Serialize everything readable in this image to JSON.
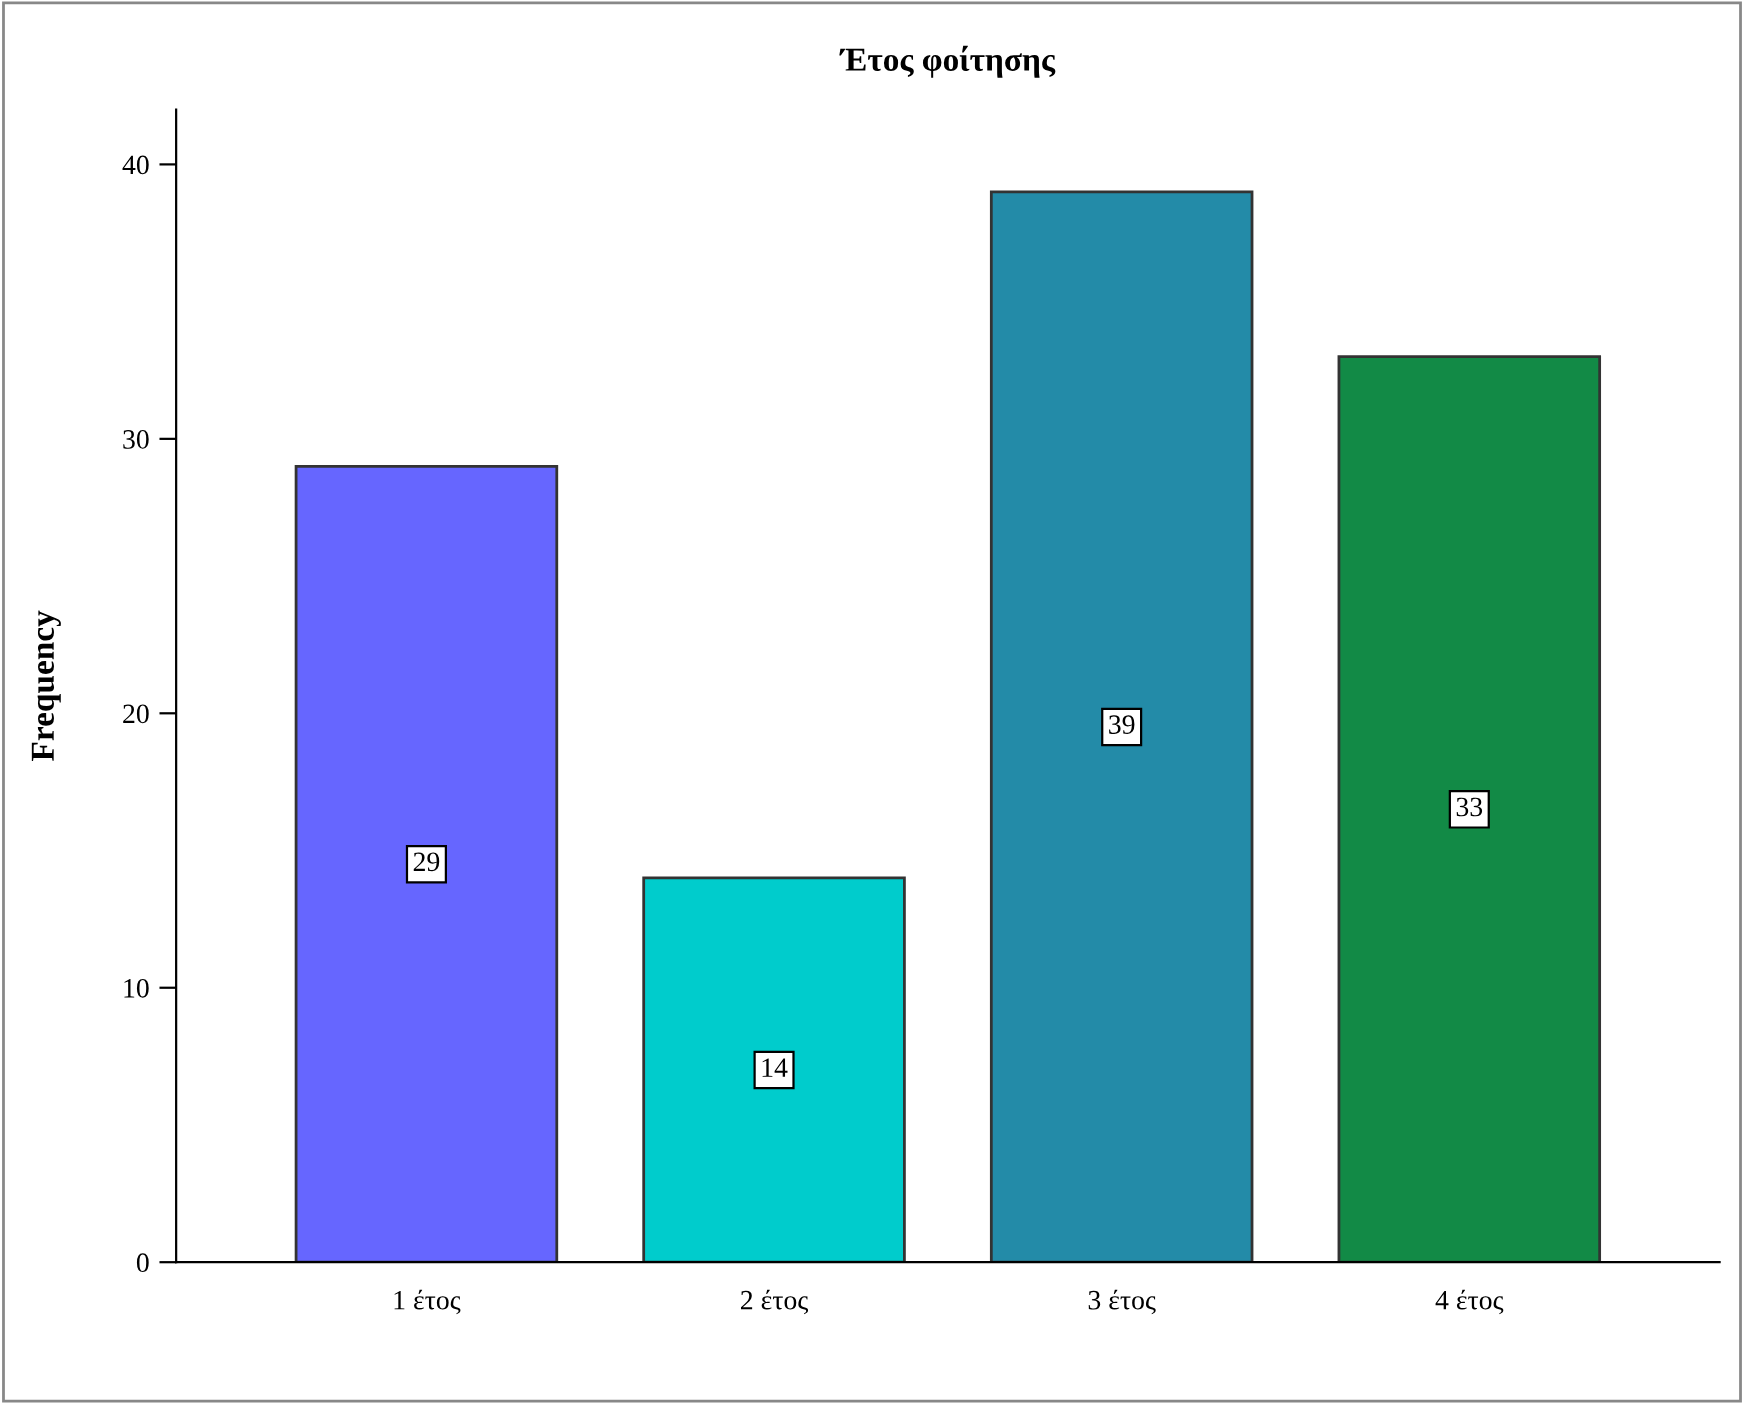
{
  "chart_data": {
    "type": "bar",
    "title": "Έτος φοίτησης",
    "ylabel": "Frequency",
    "categories": [
      "1 έτος",
      "2 έτος",
      "3 έτος",
      "4 έτος"
    ],
    "values": [
      29,
      14,
      39,
      33
    ],
    "colors": [
      "#6666ff",
      "#00cccc",
      "#238ba8",
      "#128a46"
    ],
    "ylim": [
      0,
      42
    ],
    "yticks": [
      0,
      10,
      20,
      30,
      40
    ],
    "data_labels": true,
    "grid": false,
    "legend": false
  }
}
